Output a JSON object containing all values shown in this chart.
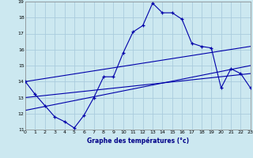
{
  "xlabel": "Graphe des températures (°c)",
  "bg_color": "#cce8f0",
  "grid_color": "#aaccdd",
  "line_color": "#0000aa",
  "xmin": 0,
  "xmax": 23,
  "ymin": 11,
  "ymax": 19,
  "hours": [
    0,
    1,
    2,
    3,
    4,
    5,
    6,
    7,
    8,
    9,
    10,
    11,
    12,
    13,
    14,
    15,
    16,
    17,
    18,
    19,
    20,
    21,
    22,
    23
  ],
  "temps": [
    14.0,
    13.2,
    12.5,
    11.8,
    11.5,
    11.1,
    11.9,
    13.0,
    14.3,
    14.3,
    15.8,
    17.1,
    17.5,
    18.9,
    18.3,
    18.3,
    17.9,
    16.4,
    16.2,
    16.1,
    13.6,
    14.8,
    14.5,
    13.6
  ],
  "trend1_x": [
    0,
    23
  ],
  "trend1_y": [
    14.0,
    16.2
  ],
  "trend2_x": [
    0,
    23
  ],
  "trend2_y": [
    12.2,
    15.0
  ],
  "trend3_x": [
    0,
    23
  ],
  "trend3_y": [
    13.0,
    14.5
  ]
}
